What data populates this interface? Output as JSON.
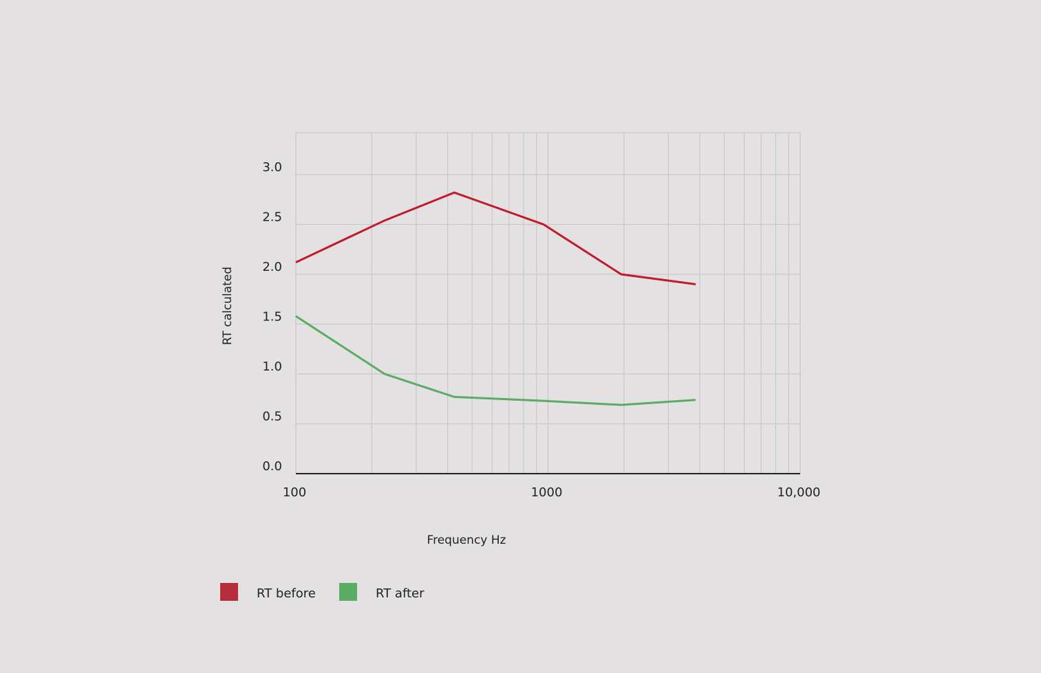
{
  "chart_data": {
    "type": "line",
    "xlabel": "Frequency Hz",
    "ylabel": "RT calculated",
    "xscale": "log",
    "xlim": [
      100,
      10000
    ],
    "ylim": [
      0,
      3.0
    ],
    "grid": true,
    "legend_position": "bottom-left",
    "x_ticks": [
      {
        "value": 100,
        "label": "100"
      },
      {
        "value": 1000,
        "label": "1000"
      },
      {
        "value": 10000,
        "label": "10,000"
      }
    ],
    "y_ticks": [
      {
        "value": 0,
        "label": "0.0"
      },
      {
        "value": 0.5,
        "label": "0.5"
      },
      {
        "value": 1.0,
        "label": "1.0"
      },
      {
        "value": 1.5,
        "label": "1.5"
      },
      {
        "value": 2.0,
        "label": "2.0"
      },
      {
        "value": 2.5,
        "label": "2.5"
      },
      {
        "value": 3.0,
        "label": "3.0"
      }
    ],
    "series": [
      {
        "name": "RT before",
        "color": "#c11a2a",
        "legend_color": "#b52e3e",
        "x": [
          100,
          225,
          425,
          960,
          1950,
          3850
        ],
        "y": [
          2.12,
          2.54,
          2.82,
          2.5,
          2.0,
          1.9
        ]
      },
      {
        "name": "RT after",
        "color": "#5aab64",
        "legend_color": "#5aab64",
        "x": [
          100,
          225,
          425,
          960,
          1950,
          3850
        ],
        "y": [
          1.58,
          1.0,
          0.77,
          0.73,
          0.69,
          0.74
        ]
      }
    ]
  },
  "colors": {
    "background": "#e3e1e1",
    "grid": "#c8c6c6",
    "axis": "#222222"
  }
}
